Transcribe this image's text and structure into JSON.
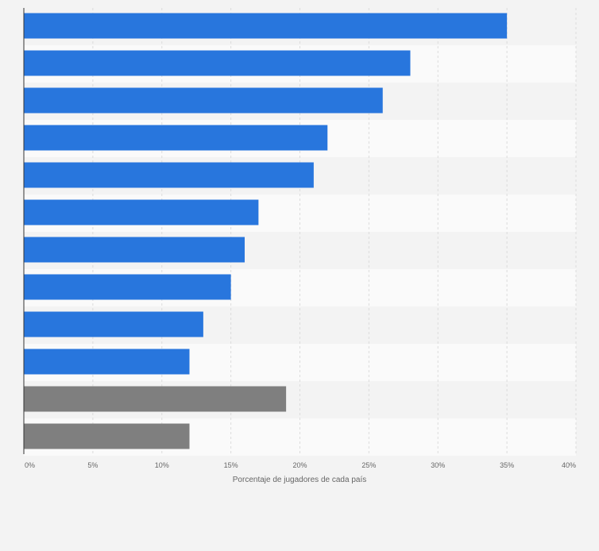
{
  "chart_data": {
    "type": "bar",
    "orientation": "horizontal",
    "title": "",
    "xlabel": "Porcentaje de jugadores de cada país",
    "ylabel": "",
    "xlim": [
      0,
      40
    ],
    "grid": true,
    "ticks": [
      "0%",
      "5%",
      "10%",
      "15%",
      "20%",
      "25%",
      "30%",
      "35%",
      "40%"
    ],
    "values": [
      35,
      28,
      26,
      22,
      21,
      17,
      16,
      15,
      13,
      12,
      19,
      12
    ],
    "bar_colors": [
      "#2876dd",
      "#2876dd",
      "#2876dd",
      "#2876dd",
      "#2876dd",
      "#2876dd",
      "#2876dd",
      "#2876dd",
      "#2876dd",
      "#2876dd",
      "#7f7f7f",
      "#7f7f7f"
    ]
  }
}
